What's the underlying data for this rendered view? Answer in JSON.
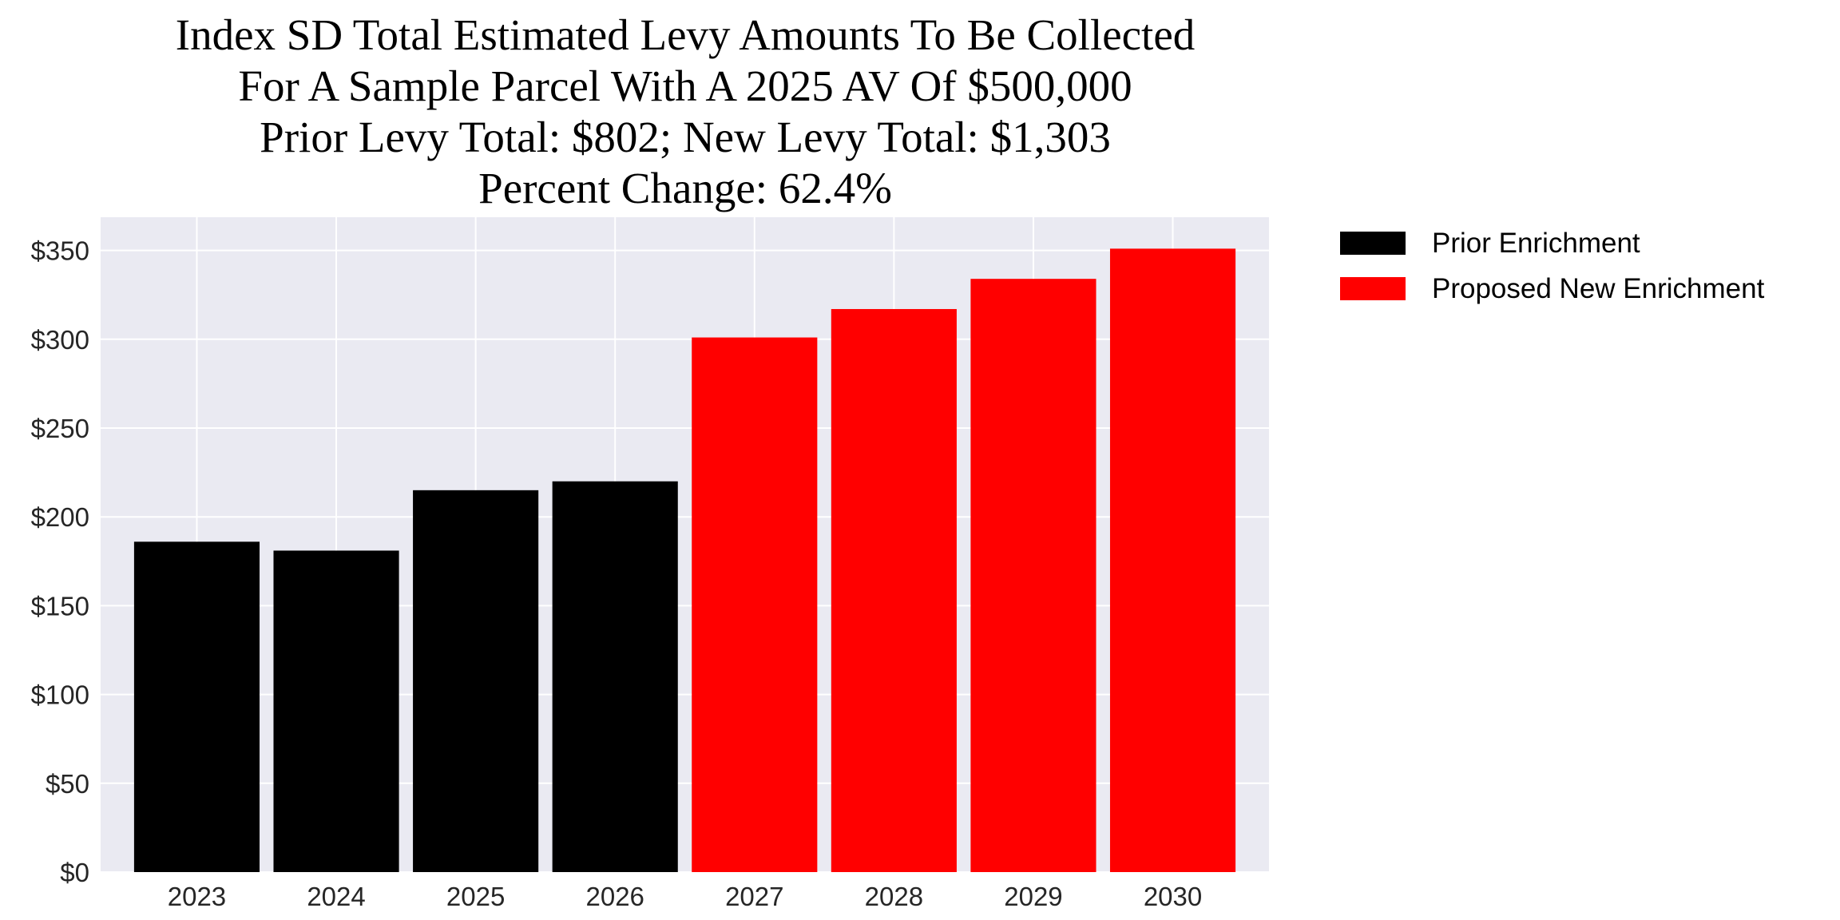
{
  "chart_data": {
    "type": "bar",
    "title_lines": [
      "Index SD Total Estimated Levy Amounts To Be Collected",
      "For A Sample Parcel With A 2025 AV Of $500,000",
      "Prior Levy Total:  $802; New Levy Total: $1,303",
      "Percent Change: 62.4%"
    ],
    "xlabel": "",
    "ylabel": "",
    "categories": [
      "2023",
      "2024",
      "2025",
      "2026",
      "2027",
      "2028",
      "2029",
      "2030"
    ],
    "values": [
      186,
      181,
      215,
      220,
      301,
      317,
      334,
      351
    ],
    "bar_series": [
      "Prior Enrichment",
      "Prior Enrichment",
      "Prior Enrichment",
      "Prior Enrichment",
      "Proposed New Enrichment",
      "Proposed New Enrichment",
      "Proposed New Enrichment",
      "Proposed New Enrichment"
    ],
    "series": [
      {
        "name": "Prior Enrichment",
        "color": "#000000"
      },
      {
        "name": "Proposed New Enrichment",
        "color": "#ff0000"
      }
    ],
    "ylim": [
      0,
      368.7
    ],
    "yticks": [
      0,
      50,
      100,
      150,
      200,
      250,
      300,
      350
    ],
    "ytick_labels": [
      "$0",
      "$50",
      "$100",
      "$150",
      "$200",
      "$250",
      "$300",
      "$350"
    ],
    "grid": true,
    "background": "#eaeaf2",
    "legend_placement": "outside-right-top"
  }
}
